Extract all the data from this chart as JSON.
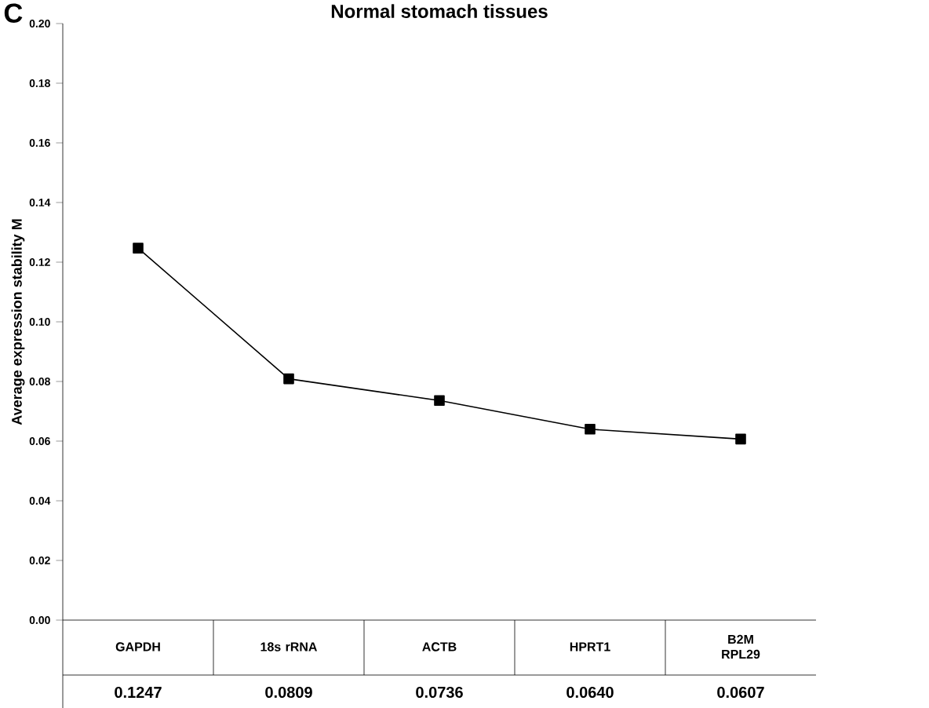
{
  "chart_data": {
    "type": "line",
    "title": "Normal stomach tissues",
    "ylabel": "Average expression stability M",
    "annotations": [
      "C"
    ],
    "categories": [
      "GAPDH",
      "18s rRNA",
      "ACTB",
      "HPRT1",
      "B2M RPL29"
    ],
    "values": [
      0.1247,
      0.0809,
      0.0736,
      0.064,
      0.0607
    ],
    "value_labels": [
      "0.1247",
      "0.0809",
      "0.0736",
      "0.0640",
      "0.0607"
    ],
    "color": "#000000",
    "marker": "square",
    "line_style": "solid",
    "grid": false,
    "ylim": [
      0,
      0.2
    ],
    "yticks": [
      {
        "value": 0,
        "label": "0.00"
      },
      {
        "value": 0.02,
        "label": "0.02"
      },
      {
        "value": 0.04,
        "label": "0.04"
      },
      {
        "value": 0.06,
        "label": "0.06"
      },
      {
        "value": 0.08,
        "label": "0.08"
      },
      {
        "value": 0.1,
        "label": "0.10"
      },
      {
        "value": 0.12,
        "label": "0.12"
      },
      {
        "value": 0.14,
        "label": "0.14"
      },
      {
        "value": 0.16,
        "label": "0.16"
      },
      {
        "value": 0.18,
        "label": "0.18"
      },
      {
        "value": 0.2,
        "label": "0.20"
      }
    ]
  }
}
